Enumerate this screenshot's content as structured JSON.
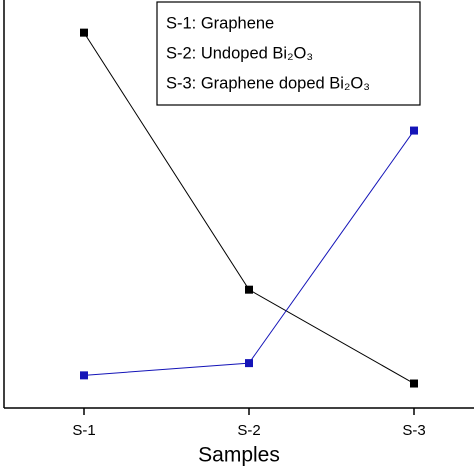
{
  "chart_data": {
    "type": "line",
    "x_label": "Samples",
    "categories": [
      "S-1",
      "S-2",
      "S-3"
    ],
    "series": [
      {
        "color": "#000000",
        "values": [
          92,
          29,
          6
        ]
      },
      {
        "color": "#1414b8",
        "values": [
          8,
          11,
          68
        ]
      }
    ],
    "ylim": [
      0,
      100
    ],
    "annotations": [
      "S-1: Graphene",
      "S-2: Undoped Bi₂O₃",
      "S-3: Graphene doped Bi₂O₃"
    ]
  }
}
